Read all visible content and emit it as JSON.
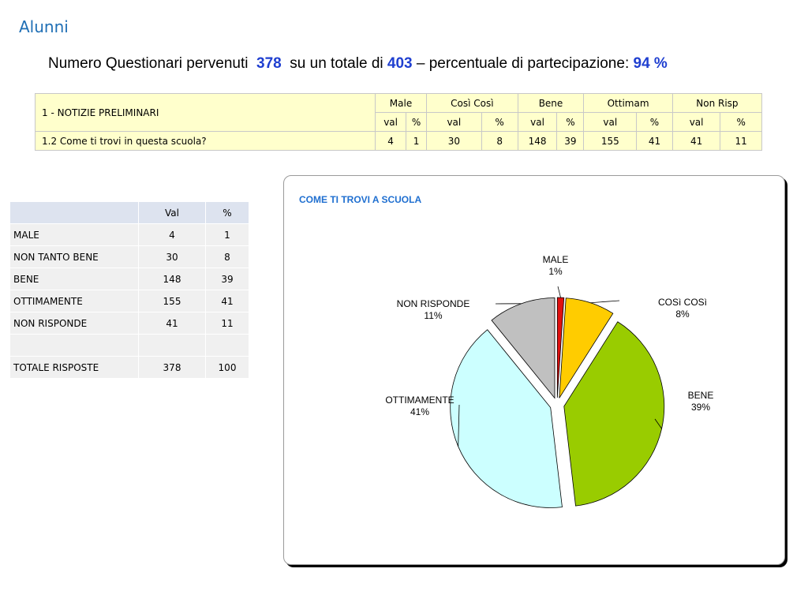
{
  "page_title": "Alunni",
  "summary": {
    "prefix": "Numero Questionari pervenuti",
    "received": "378",
    "middle": "su un totale di",
    "total": "403",
    "suffix": "– percentuale di partecipazione:",
    "percent": "94 %"
  },
  "top_table": {
    "section_label": "1  -  NOTIZIE PRELIMINARI",
    "columns": [
      "Male",
      "Così Così",
      "Bene",
      "Ottimam",
      "Non Risp"
    ],
    "sub_headers": [
      "val",
      "%"
    ],
    "row_label": "1.2 Come ti trovi in questa scuola?",
    "row_values": [
      "4",
      "1",
      "30",
      "8",
      "148",
      "39",
      "155",
      "41",
      "41",
      "11"
    ]
  },
  "side_table": {
    "headers": [
      "",
      "Val",
      "%"
    ],
    "rows": [
      {
        "label": "MALE",
        "val": "4",
        "pct": "1"
      },
      {
        "label": "NON TANTO BENE",
        "val": "30",
        "pct": "8"
      },
      {
        "label": "BENE",
        "val": "148",
        "pct": "39"
      },
      {
        "label": "OTTIMAMENTE",
        "val": "155",
        "pct": "41"
      },
      {
        "label": "NON RISPONDE",
        "val": "41",
        "pct": "11"
      },
      {
        "label": "",
        "val": "",
        "pct": ""
      },
      {
        "label": "TOTALE RISPOSTE",
        "val": "378",
        "pct": "100"
      }
    ]
  },
  "chart_data": {
    "type": "pie",
    "title": "COME TI TROVI A SCUOLA",
    "slices": [
      {
        "label": "MALE",
        "pct_label": "1%",
        "value": 4,
        "color": "#e01010"
      },
      {
        "label": "COSì COSì",
        "pct_label": "8%",
        "value": 30,
        "color": "#ffcc00"
      },
      {
        "label": "BENE",
        "pct_label": "39%",
        "value": 148,
        "color": "#99cc00"
      },
      {
        "label": "OTTIMAMENTE",
        "pct_label": "41%",
        "value": 155,
        "color": "#ccffff"
      },
      {
        "label": "NON RISPONDE",
        "pct_label": "11%",
        "value": 41,
        "color": "#c0c0c0"
      }
    ],
    "title_color": "#1f6fd0"
  }
}
